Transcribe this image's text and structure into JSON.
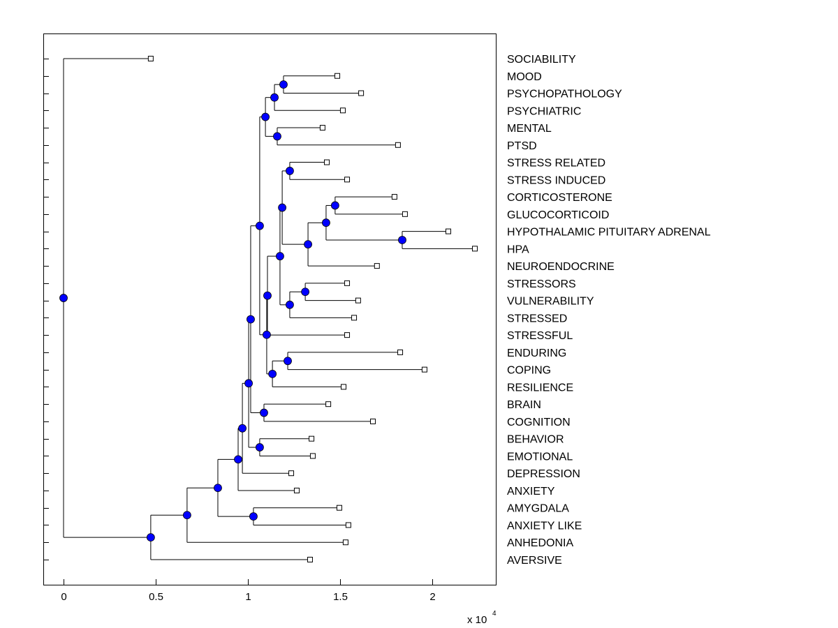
{
  "chart_data": {
    "type": "dendrogram",
    "title": "",
    "xlabel": "",
    "ylabel": "",
    "x_multiplier": {
      "base": "x 10",
      "exponent": "4"
    },
    "xlim": [
      -0.11,
      2.35
    ],
    "xticks": [
      0,
      0.5,
      1,
      1.5,
      2
    ],
    "xtick_labels": [
      "0",
      "0.5",
      "1",
      "1.5",
      "2"
    ],
    "colors": {
      "node_marker": "#0000ff",
      "leaf_marker": "#ffffff",
      "line": "#000000"
    },
    "leaves": [
      {
        "label": "SOCIABILITY",
        "x": 0.473
      },
      {
        "label": "MOOD",
        "x": 1.485
      },
      {
        "label": "PSYCHOPATHOLOGY",
        "x": 1.614
      },
      {
        "label": "PSYCHIATRIC",
        "x": 1.515
      },
      {
        "label": "MENTAL",
        "x": 1.405
      },
      {
        "label": "PTSD",
        "x": 1.814
      },
      {
        "label": "STRESS RELATED",
        "x": 1.428
      },
      {
        "label": "STRESS INDUCED",
        "x": 1.538
      },
      {
        "label": "CORTICOSTERONE",
        "x": 1.795
      },
      {
        "label": "GLUCOCORTICOID",
        "x": 1.852
      },
      {
        "label": "HYPOTHALAMIC PITUITARY ADRENAL",
        "x": 2.087
      },
      {
        "label": "HPA",
        "x": 2.231
      },
      {
        "label": "NEUROENDOCRINE",
        "x": 1.7
      },
      {
        "label": "STRESSORS",
        "x": 1.538
      },
      {
        "label": "VULNERABILITY",
        "x": 1.598
      },
      {
        "label": "STRESSED",
        "x": 1.576
      },
      {
        "label": "STRESSFUL",
        "x": 1.538
      },
      {
        "label": "ENDURING",
        "x": 1.826
      },
      {
        "label": "COPING",
        "x": 1.958
      },
      {
        "label": "RESILIENCE",
        "x": 1.519
      },
      {
        "label": "BRAIN",
        "x": 1.436
      },
      {
        "label": "COGNITION",
        "x": 1.678
      },
      {
        "label": "BEHAVIOR",
        "x": 1.345
      },
      {
        "label": "EMOTIONAL",
        "x": 1.352
      },
      {
        "label": "DEPRESSION",
        "x": 1.235
      },
      {
        "label": "ANXIETY",
        "x": 1.265
      },
      {
        "label": "AMYGDALA",
        "x": 1.496
      },
      {
        "label": "ANXIETY LIKE",
        "x": 1.545
      },
      {
        "label": "ANHEDONIA",
        "x": 1.53
      },
      {
        "label": "AVERSIVE",
        "x": 1.337
      }
    ],
    "tree": {
      "x": 0,
      "children": [
        "SOCIABILITY",
        {
          "x": 0.473,
          "children": [
            {
              "x": 0.67,
              "children": [
                {
                  "x": 0.837,
                  "children": [
                    {
                      "x": 0.947,
                      "children": [
                        {
                          "x": 0.97,
                          "children": [
                            {
                              "x": 1.004,
                              "children": [
                                {
                                  "x": 1.015,
                                  "children": [
                                    {
                                      "x": 1.064,
                                      "children": [
                                        {
                                          "x": 1.095,
                                          "children": [
                                            {
                                              "x": 1.144,
                                              "children": [
                                                {
                                                  "x": 1.193,
                                                  "children": [
                                                    "MOOD",
                                                    "PSYCHOPATHOLOGY"
                                                  ]
                                                },
                                                "PSYCHIATRIC"
                                              ]
                                            },
                                            {
                                              "x": 1.159,
                                              "children": [
                                                "MENTAL",
                                                "PTSD"
                                              ]
                                            }
                                          ]
                                        },
                                        {
                                          "x": 1.102,
                                          "children": [
                                            {
                                              "x": 1.106,
                                              "children": [
                                                {
                                                  "x": 1.174,
                                                  "children": [
                                                    {
                                                      "x": 1.186,
                                                      "children": [
                                                        {
                                                          "x": 1.227,
                                                          "children": [
                                                            "STRESS RELATED",
                                                            "STRESS INDUCED"
                                                          ]
                                                        },
                                                        {
                                                          "x": 1.326,
                                                          "children": [
                                                            {
                                                              "x": 1.424,
                                                              "children": [
                                                                {
                                                                  "x": 1.473,
                                                                  "children": [
                                                                    "CORTICOSTERONE",
                                                                    "GLUCOCORTICOID"
                                                                  ]
                                                                },
                                                                {
                                                                  "x": 1.837,
                                                                  "children": [
                                                                    "HYPOTHALAMIC PITUITARY ADRENAL",
                                                                    "HPA"
                                                                  ]
                                                                }
                                                              ]
                                                            },
                                                            "NEUROENDOCRINE"
                                                          ]
                                                        }
                                                      ]
                                                    },
                                                    {
                                                      "x": 1.227,
                                                      "children": [
                                                        {
                                                          "x": 1.311,
                                                          "children": [
                                                            "STRESSORS",
                                                            "VULNERABILITY"
                                                          ]
                                                        },
                                                        "STRESSED"
                                                      ]
                                                    }
                                                  ]
                                                },
                                                "STRESSFUL"
                                              ]
                                            },
                                            {
                                              "x": 1.133,
                                              "children": [
                                                {
                                                  "x": 1.216,
                                                  "children": [
                                                    "ENDURING",
                                                    "COPING"
                                                  ]
                                                },
                                                "RESILIENCE"
                                              ]
                                            }
                                          ]
                                        }
                                      ]
                                    },
                                    {
                                      "x": 1.087,
                                      "children": [
                                        "BRAIN",
                                        "COGNITION"
                                      ]
                                    }
                                  ]
                                },
                                {
                                  "x": 1.064,
                                  "children": [
                                    "BEHAVIOR",
                                    "EMOTIONAL"
                                  ]
                                }
                              ]
                            },
                            "DEPRESSION"
                          ]
                        },
                        "ANXIETY"
                      ]
                    },
                    {
                      "x": 1.03,
                      "children": [
                        "AMYGDALA",
                        "ANXIETY LIKE"
                      ]
                    }
                  ]
                },
                "ANHEDONIA"
              ]
            },
            "AVERSIVE"
          ]
        }
      ]
    }
  }
}
